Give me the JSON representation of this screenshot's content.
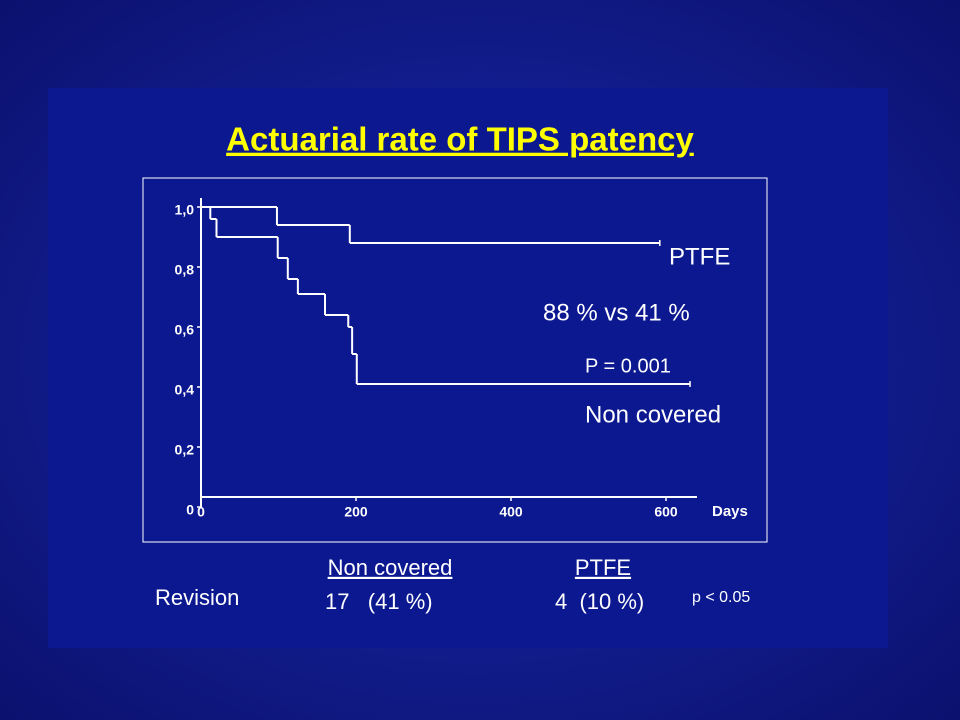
{
  "chart_data": {
    "type": "step",
    "title": "Actuarial rate of TIPS patency",
    "x_label": "Days",
    "series": [
      {
        "name": "PTFE",
        "color": "#ffffff",
        "x": [
          0,
          98,
          192,
          592
        ],
        "values": [
          1.0,
          0.94,
          0.88,
          0.88
        ]
      },
      {
        "name": "Non covered",
        "color": "#ffffff",
        "x": [
          0,
          12,
          20,
          99,
          112,
          125,
          160,
          190,
          195,
          201,
          631
        ],
        "values": [
          1.0,
          0.96,
          0.9,
          0.83,
          0.76,
          0.71,
          0.64,
          0.6,
          0.51,
          0.41,
          0.41
        ]
      }
    ],
    "annotations": [
      "88 %  vs 41 %",
      "P = 0.001"
    ],
    "xlim": [
      0,
      640
    ],
    "xticks": [
      0,
      200,
      400,
      600
    ],
    "ylim": [
      0,
      1.03
    ],
    "yticks": [
      0,
      {
        "value": 0.2,
        "label": "0,2"
      },
      {
        "value": 0.4,
        "label": "0,4"
      },
      {
        "value": 0.6,
        "label": "0,6"
      },
      {
        "value": 0.8,
        "label": "0,8"
      },
      {
        "value": 1,
        "label": "1,0"
      }
    ],
    "grid": false
  },
  "table": {
    "columns": [
      "Non covered",
      "PTFE"
    ],
    "rows": [
      [
        "Revision",
        "17   (41 %)",
        "4  (10 %)",
        "p < 0.05"
      ]
    ]
  }
}
